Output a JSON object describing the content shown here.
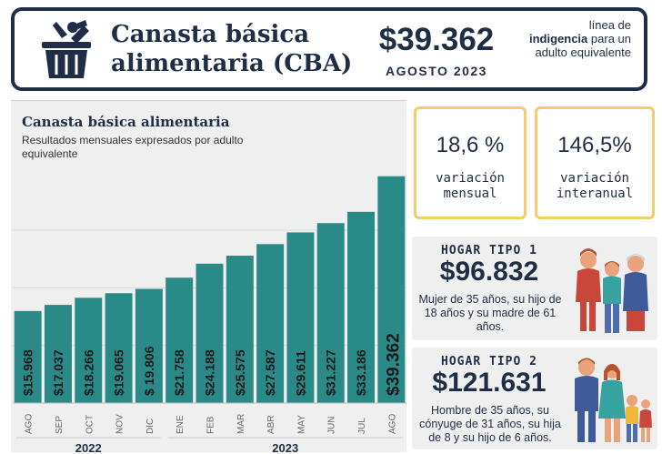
{
  "header": {
    "title": "Canasta básica alimentaria (CBA)",
    "price": "$39.362",
    "month": "AGOSTO 2023",
    "desc_pre": "línea de",
    "desc_bold": "indigencia",
    "desc_post": "para un adulto equivalente",
    "logo_icon": "grocery-basket-icon"
  },
  "variations": {
    "monthly": {
      "value": "18,6 %",
      "label": "variación mensual"
    },
    "annual": {
      "value": "146,5%",
      "label": "variación interanual"
    }
  },
  "hogar1": {
    "title": "HOGAR TIPO 1",
    "value": "$96.832",
    "desc": "Mujer de 35 años, su hijo de 18 años y su madre de 61 años.",
    "icon": "family-three-adults-icon"
  },
  "hogar2": {
    "title": "HOGAR TIPO 2",
    "value": "$121.631",
    "desc": "Hombre de 35 años, su cónyuge de 31 años, su hija de 8 y su hijo de 6 años.",
    "icon": "family-parents-two-children-icon"
  },
  "colors": {
    "navy": "#1f2d46",
    "bar": "#2a8a88",
    "accent_border": "#f3cc6b",
    "panel_bg": "#efefef"
  },
  "chart_data": {
    "type": "bar",
    "title": "Canasta básica alimentaria",
    "subtitle": "Resultados mensuales expresados por adulto equivalente",
    "categories": [
      "AGO",
      "SEP",
      "OCT",
      "NOV",
      "DIC",
      "ENE",
      "FEB",
      "MAR",
      "ABR",
      "MAY",
      "JUN",
      "JUL",
      "AGO"
    ],
    "values": [
      15968,
      17037,
      18266,
      19065,
      19806,
      21758,
      24188,
      25575,
      27587,
      29611,
      31227,
      33186,
      39362
    ],
    "data_labels": [
      "$15.968",
      "$17.037",
      "$18.266",
      "$19.065",
      "$ 19.806",
      "$21.758",
      "$24.188",
      "$25.575",
      "$27.587",
      "$29.611",
      "$31.227",
      "$33.186",
      "$39.362"
    ],
    "year_groups": [
      {
        "label": "2022",
        "start": 0,
        "end": 4
      },
      {
        "label": "2023",
        "start": 5,
        "end": 12
      }
    ],
    "ylim": [
      0,
      42000
    ],
    "grid": true,
    "legend": "none"
  }
}
